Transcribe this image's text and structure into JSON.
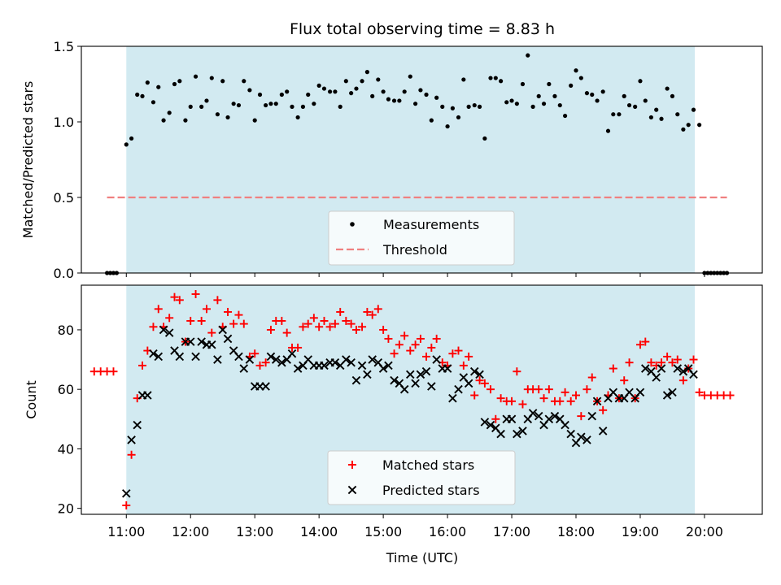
{
  "figure": {
    "title": "Flux total observing time = 8.83 h"
  },
  "chart_data": [
    {
      "type": "scatter",
      "title": "Flux total observing time = 8.83 h",
      "xlabel": "",
      "ylabel": "Matched/Predicted stars",
      "xlim": [
        10.3,
        20.9
      ],
      "ylim": [
        0,
        1.5
      ],
      "yticks": [
        0,
        0.5,
        1.0,
        1.5
      ],
      "ytick_labels": [
        "0.0",
        "0.5",
        "1.0",
        "1.5"
      ],
      "xticks": [
        11,
        12,
        13,
        14,
        15,
        16,
        17,
        18,
        19,
        20
      ],
      "show_xtick_labels": false,
      "observing_window": [
        11.0,
        19.85
      ],
      "window_color": "#add8e6",
      "threshold": 0.5,
      "threshold_range": [
        10.7,
        20.35
      ],
      "threshold_color": "#f08080",
      "legend": {
        "position": "lower-center",
        "items": [
          {
            "label": "Measurements",
            "marker": "dot",
            "color": "#000000"
          },
          {
            "label": "Threshold",
            "marker": "dashed-line",
            "color": "#f08080"
          }
        ]
      },
      "series": [
        {
          "name": "Measurements",
          "color": "#000000",
          "marker": "dot",
          "x": [
            10.7,
            10.75,
            10.8,
            10.85,
            11.0,
            11.08,
            11.17,
            11.25,
            11.33,
            11.42,
            11.5,
            11.58,
            11.67,
            11.75,
            11.83,
            11.92,
            12.0,
            12.08,
            12.17,
            12.25,
            12.33,
            12.42,
            12.5,
            12.58,
            12.67,
            12.75,
            12.83,
            12.92,
            13.0,
            13.08,
            13.17,
            13.25,
            13.33,
            13.42,
            13.5,
            13.58,
            13.67,
            13.75,
            13.83,
            13.92,
            14.0,
            14.08,
            14.17,
            14.25,
            14.33,
            14.42,
            14.5,
            14.58,
            14.67,
            14.75,
            14.83,
            14.92,
            15.0,
            15.08,
            15.17,
            15.25,
            15.33,
            15.42,
            15.5,
            15.58,
            15.67,
            15.75,
            15.83,
            15.92,
            16.0,
            16.08,
            16.17,
            16.25,
            16.33,
            16.42,
            16.5,
            16.58,
            16.67,
            16.75,
            16.83,
            16.92,
            17.0,
            17.08,
            17.17,
            17.25,
            17.33,
            17.42,
            17.5,
            17.58,
            17.67,
            17.75,
            17.83,
            17.92,
            18.0,
            18.08,
            18.17,
            18.25,
            18.33,
            18.42,
            18.5,
            18.58,
            18.67,
            18.75,
            18.83,
            18.92,
            19.0,
            19.08,
            19.17,
            19.25,
            19.33,
            19.42,
            19.5,
            19.58,
            19.67,
            19.75,
            19.83,
            19.92,
            20.0,
            20.05,
            20.1,
            20.15,
            20.2,
            20.25,
            20.3,
            20.35
          ],
          "y": [
            0,
            0,
            0,
            0,
            0.85,
            0.89,
            1.18,
            1.17,
            1.26,
            1.13,
            1.23,
            1.01,
            1.06,
            1.25,
            1.27,
            1.01,
            1.1,
            1.3,
            1.1,
            1.14,
            1.29,
            1.05,
            1.27,
            1.03,
            1.12,
            1.11,
            1.27,
            1.21,
            1.01,
            1.18,
            1.11,
            1.12,
            1.12,
            1.18,
            1.2,
            1.1,
            1.03,
            1.1,
            1.18,
            1.12,
            1.24,
            1.22,
            1.2,
            1.2,
            1.1,
            1.27,
            1.19,
            1.22,
            1.27,
            1.33,
            1.17,
            1.28,
            1.2,
            1.15,
            1.14,
            1.14,
            1.2,
            1.3,
            1.12,
            1.21,
            1.18,
            1.01,
            1.16,
            1.1,
            0.97,
            1.09,
            1.03,
            1.28,
            1.1,
            1.11,
            1.1,
            0.89,
            1.29,
            1.29,
            1.27,
            1.13,
            1.14,
            1.12,
            1.25,
            1.44,
            1.1,
            1.17,
            1.12,
            1.25,
            1.17,
            1.11,
            1.04,
            1.24,
            1.34,
            1.29,
            1.19,
            1.18,
            1.14,
            1.2,
            0.94,
            1.05,
            1.05,
            1.17,
            1.11,
            1.1,
            1.27,
            1.14,
            1.03,
            1.08,
            1.02,
            1.22,
            1.17,
            1.05,
            0.95,
            0.98,
            1.08,
            0.98,
            0,
            0,
            0,
            0,
            0,
            0,
            0,
            0
          ]
        }
      ]
    },
    {
      "type": "scatter",
      "title": "",
      "xlabel": "Time (UTC)",
      "ylabel": "Count",
      "xlim": [
        10.3,
        20.9
      ],
      "ylim": [
        18,
        95
      ],
      "yticks": [
        20,
        40,
        60,
        80
      ],
      "ytick_labels": [
        "20",
        "40",
        "60",
        "80"
      ],
      "xticks": [
        11,
        12,
        13,
        14,
        15,
        16,
        17,
        18,
        19,
        20
      ],
      "xtick_labels": [
        "11:00",
        "12:00",
        "13:00",
        "14:00",
        "15:00",
        "16:00",
        "17:00",
        "18:00",
        "19:00",
        "20:00"
      ],
      "observing_window": [
        11.0,
        19.85
      ],
      "window_color": "#add8e6",
      "legend": {
        "position": "lower-center",
        "items": [
          {
            "label": "Matched stars",
            "marker": "plus",
            "color": "#ff0000"
          },
          {
            "label": "Predicted stars",
            "marker": "x",
            "color": "#000000"
          }
        ]
      },
      "series": [
        {
          "name": "Matched stars",
          "color": "#ff0000",
          "marker": "plus",
          "x": [
            10.5,
            10.6,
            10.7,
            10.8,
            11.0,
            11.08,
            11.17,
            11.25,
            11.33,
            11.42,
            11.5,
            11.58,
            11.67,
            11.75,
            11.83,
            11.92,
            12.0,
            12.08,
            12.17,
            12.25,
            12.33,
            12.42,
            12.5,
            12.58,
            12.67,
            12.75,
            12.83,
            12.92,
            13.0,
            13.08,
            13.17,
            13.25,
            13.33,
            13.42,
            13.5,
            13.58,
            13.67,
            13.75,
            13.83,
            13.92,
            14.0,
            14.08,
            14.17,
            14.25,
            14.33,
            14.42,
            14.5,
            14.58,
            14.67,
            14.75,
            14.83,
            14.92,
            15.0,
            15.08,
            15.17,
            15.25,
            15.33,
            15.42,
            15.5,
            15.58,
            15.67,
            15.75,
            15.83,
            15.92,
            16.0,
            16.08,
            16.17,
            16.25,
            16.33,
            16.42,
            16.5,
            16.58,
            16.67,
            16.75,
            16.83,
            16.92,
            17.0,
            17.08,
            17.17,
            17.25,
            17.33,
            17.42,
            17.5,
            17.58,
            17.67,
            17.75,
            17.83,
            17.92,
            18.0,
            18.08,
            18.17,
            18.25,
            18.33,
            18.42,
            18.5,
            18.58,
            18.67,
            18.75,
            18.83,
            18.92,
            19.0,
            19.08,
            19.17,
            19.25,
            19.33,
            19.42,
            19.5,
            19.58,
            19.67,
            19.75,
            19.83,
            19.92,
            20.0,
            20.1,
            20.2,
            20.3,
            20.4
          ],
          "y": [
            66,
            66,
            66,
            66,
            21,
            38,
            57,
            68,
            73,
            81,
            87,
            81,
            84,
            91,
            90,
            76,
            83,
            92,
            83,
            87,
            79,
            90,
            81,
            86,
            82,
            85,
            82,
            71,
            72,
            68,
            69,
            80,
            83,
            83,
            79,
            74,
            74,
            81,
            82,
            84,
            81,
            83,
            81,
            82,
            86,
            83,
            82,
            80,
            81,
            86,
            85,
            87,
            80,
            77,
            72,
            75,
            78,
            73,
            75,
            77,
            71,
            74,
            77,
            69,
            68,
            72,
            73,
            68,
            71,
            58,
            63,
            62,
            60,
            50,
            57,
            56,
            56,
            66,
            55,
            60,
            60,
            60,
            57,
            60,
            56,
            56,
            59,
            56,
            58,
            51,
            60,
            64,
            56,
            53,
            58,
            67,
            57,
            63,
            69,
            57,
            75,
            76,
            69,
            68,
            69,
            71,
            69,
            70,
            63,
            67,
            70,
            59,
            58,
            58,
            58,
            58,
            58
          ]
        },
        {
          "name": "Predicted stars",
          "color": "#000000",
          "marker": "x",
          "x": [
            11.0,
            11.08,
            11.17,
            11.25,
            11.33,
            11.42,
            11.5,
            11.58,
            11.67,
            11.75,
            11.83,
            11.92,
            12.0,
            12.08,
            12.17,
            12.25,
            12.33,
            12.42,
            12.5,
            12.58,
            12.67,
            12.75,
            12.83,
            12.92,
            13.0,
            13.08,
            13.17,
            13.25,
            13.33,
            13.42,
            13.5,
            13.58,
            13.67,
            13.75,
            13.83,
            13.92,
            14.0,
            14.08,
            14.17,
            14.25,
            14.33,
            14.42,
            14.5,
            14.58,
            14.67,
            14.75,
            14.83,
            14.92,
            15.0,
            15.08,
            15.17,
            15.25,
            15.33,
            15.42,
            15.5,
            15.58,
            15.67,
            15.75,
            15.83,
            15.92,
            16.0,
            16.08,
            16.17,
            16.25,
            16.33,
            16.42,
            16.5,
            16.58,
            16.67,
            16.75,
            16.83,
            16.92,
            17.0,
            17.08,
            17.17,
            17.25,
            17.33,
            17.42,
            17.5,
            17.58,
            17.67,
            17.75,
            17.83,
            17.92,
            18.0,
            18.08,
            18.17,
            18.25,
            18.33,
            18.42,
            18.5,
            18.58,
            18.67,
            18.75,
            18.83,
            18.92,
            19.0,
            19.08,
            19.17,
            19.25,
            19.33,
            19.42,
            19.5,
            19.58,
            19.67,
            19.75,
            19.83
          ],
          "y": [
            25,
            43,
            48,
            58,
            58,
            72,
            71,
            80,
            79,
            73,
            71,
            76,
            76,
            71,
            76,
            75,
            75,
            70,
            80,
            77,
            73,
            71,
            67,
            70,
            61,
            61,
            61,
            71,
            70,
            69,
            70,
            72,
            67,
            68,
            70,
            68,
            68,
            68,
            69,
            69,
            68,
            70,
            69,
            63,
            68,
            65,
            70,
            69,
            67,
            68,
            63,
            62,
            60,
            65,
            62,
            65,
            66,
            61,
            70,
            67,
            67,
            57,
            60,
            64,
            62,
            66,
            65,
            49,
            48,
            47,
            45,
            50,
            50,
            45,
            46,
            50,
            52,
            51,
            48,
            50,
            51,
            50,
            48,
            45,
            42,
            44,
            43,
            51,
            56,
            46,
            57,
            59,
            57,
            57,
            59,
            57,
            59,
            67,
            66,
            64,
            67,
            58,
            59,
            67,
            66,
            67,
            65
          ]
        }
      ]
    }
  ]
}
